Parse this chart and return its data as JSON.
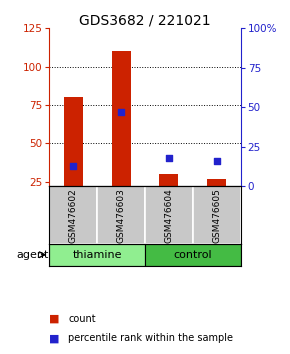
{
  "title": "GDS3682 / 221021",
  "samples": [
    "GSM476602",
    "GSM476603",
    "GSM476604",
    "GSM476605"
  ],
  "count_values": [
    80,
    110,
    30,
    27
  ],
  "percentile_values": [
    13,
    47,
    18,
    16
  ],
  "left_ylim": [
    22,
    125
  ],
  "left_yticks": [
    25,
    50,
    75,
    100,
    125
  ],
  "right_ylim": [
    0,
    100
  ],
  "right_yticks": [
    0,
    25,
    50,
    75,
    100
  ],
  "right_yticklabels": [
    "0",
    "25",
    "50",
    "75",
    "100%"
  ],
  "bar_color": "#CC2200",
  "dot_color": "#2222CC",
  "grid_yticks": [
    50,
    75,
    100
  ],
  "sample_bg_color": "#C8C8C8",
  "thiamine_color": "#90EE90",
  "control_color": "#44BB44",
  "groups_info": [
    [
      "thiamine",
      0,
      2
    ],
    [
      "control",
      2,
      4
    ]
  ],
  "title_fontsize": 10,
  "tick_fontsize": 7.5,
  "bar_width": 0.4,
  "dot_size": 25
}
